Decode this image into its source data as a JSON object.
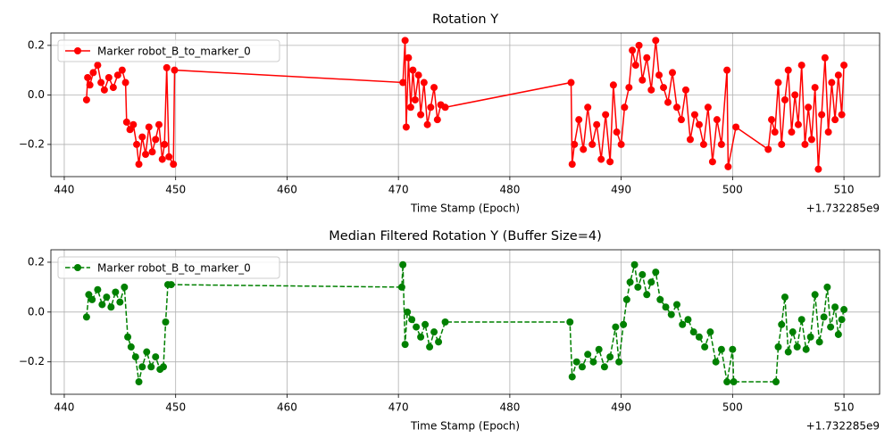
{
  "chart_data": [
    {
      "type": "line",
      "title": "Rotation Y",
      "xlabel": "Time Stamp (Epoch)",
      "x_offset_label": "+1.732285e9",
      "xlim": [
        438.8,
        513.2
      ],
      "ylim": [
        -0.33,
        0.25
      ],
      "xticks": [
        440,
        450,
        460,
        470,
        480,
        490,
        500,
        510
      ],
      "yticks": [
        {
          "value": -0.2,
          "label": "−0.2"
        },
        {
          "value": 0,
          "label": "0.0"
        },
        0.2
      ],
      "grid": true,
      "legend": "upper left",
      "marker": "circle",
      "linestyle": "solid",
      "x": [
        442.0,
        442.1,
        442.3,
        442.6,
        443.0,
        443.3,
        443.6,
        444.0,
        444.4,
        444.8,
        445.2,
        445.5,
        445.6,
        445.9,
        446.2,
        446.5,
        446.7,
        447.0,
        447.3,
        447.6,
        447.9,
        448.2,
        448.5,
        448.8,
        449.0,
        449.2,
        449.4,
        449.8,
        449.9,
        470.4,
        470.6,
        470.7,
        470.9,
        471.1,
        471.3,
        471.5,
        471.8,
        472.0,
        472.3,
        472.6,
        472.9,
        473.2,
        473.5,
        473.8,
        474.2,
        485.5,
        485.6,
        485.8,
        486.2,
        486.6,
        487.0,
        487.4,
        487.8,
        488.2,
        488.6,
        489.0,
        489.3,
        489.6,
        490.0,
        490.3,
        490.7,
        491.0,
        491.3,
        491.6,
        491.9,
        492.3,
        492.7,
        493.1,
        493.4,
        493.8,
        494.2,
        494.6,
        495.0,
        495.4,
        495.8,
        496.2,
        496.6,
        497.0,
        497.4,
        497.8,
        498.2,
        498.6,
        499.0,
        499.5,
        499.6,
        500.3,
        503.2,
        503.5,
        503.8,
        504.1,
        504.4,
        504.7,
        505.0,
        505.3,
        505.6,
        505.9,
        506.2,
        506.5,
        506.8,
        507.1,
        507.4,
        507.7,
        508.0,
        508.3,
        508.6,
        508.9,
        509.2,
        509.5,
        509.8,
        510.0
      ],
      "series": [
        {
          "name": "Marker robot_B_to_marker_0",
          "color": "#ff0000",
          "values": [
            -0.02,
            0.07,
            0.04,
            0.09,
            0.12,
            0.05,
            0.02,
            0.07,
            0.03,
            0.08,
            0.1,
            0.05,
            -0.11,
            -0.14,
            -0.12,
            -0.2,
            -0.28,
            -0.17,
            -0.24,
            -0.13,
            -0.23,
            -0.18,
            -0.12,
            -0.26,
            -0.2,
            0.11,
            -0.25,
            -0.28,
            0.1,
            0.05,
            0.22,
            -0.13,
            0.15,
            -0.05,
            0.1,
            -0.02,
            0.08,
            -0.08,
            0.05,
            -0.12,
            -0.05,
            0.03,
            -0.1,
            -0.04,
            -0.05,
            0.05,
            -0.28,
            -0.2,
            -0.1,
            -0.22,
            -0.05,
            -0.2,
            -0.12,
            -0.26,
            -0.08,
            -0.27,
            0.04,
            -0.15,
            -0.2,
            -0.05,
            0.03,
            0.18,
            0.12,
            0.2,
            0.06,
            0.15,
            0.02,
            0.22,
            0.08,
            0.03,
            -0.03,
            0.09,
            -0.05,
            -0.1,
            0.02,
            -0.18,
            -0.08,
            -0.12,
            -0.2,
            -0.05,
            -0.27,
            -0.1,
            -0.2,
            0.1,
            -0.29,
            -0.13,
            -0.22,
            -0.1,
            -0.15,
            0.05,
            -0.2,
            -0.02,
            0.1,
            -0.15,
            0.0,
            -0.12,
            0.12,
            -0.2,
            -0.05,
            -0.18,
            0.03,
            -0.3,
            -0.08,
            0.15,
            -0.15,
            0.05,
            -0.1,
            0.08,
            -0.08,
            0.12
          ]
        }
      ]
    },
    {
      "type": "line",
      "title": "Median Filtered Rotation Y (Buffer Size=4)",
      "xlabel": "Time Stamp (Epoch)",
      "x_offset_label": "+1.732285e9",
      "xlim": [
        438.8,
        513.2
      ],
      "ylim": [
        -0.33,
        0.25
      ],
      "xticks": [
        440,
        450,
        460,
        470,
        480,
        490,
        500,
        510
      ],
      "yticks": [
        {
          "value": -0.2,
          "label": "−0.2"
        },
        {
          "value": 0,
          "label": "0.0"
        },
        0.2
      ],
      "grid": true,
      "legend": "upper left",
      "marker": "circle",
      "linestyle": "dashed",
      "x": [
        442.0,
        442.2,
        442.5,
        443.0,
        443.4,
        443.8,
        444.2,
        444.6,
        445.0,
        445.4,
        445.7,
        446.0,
        446.4,
        446.7,
        447.0,
        447.4,
        447.8,
        448.2,
        448.6,
        448.9,
        449.1,
        449.3,
        449.6,
        470.3,
        470.4,
        470.6,
        470.8,
        471.2,
        471.6,
        472.0,
        472.4,
        472.8,
        473.2,
        473.6,
        474.2,
        485.4,
        485.6,
        486.0,
        486.5,
        487.0,
        487.5,
        488.0,
        488.5,
        489.0,
        489.5,
        489.8,
        490.2,
        490.5,
        490.8,
        491.2,
        491.5,
        491.9,
        492.3,
        492.7,
        493.1,
        493.5,
        494.0,
        494.5,
        495.0,
        495.5,
        496.0,
        496.5,
        497.0,
        497.5,
        498.0,
        498.5,
        499.0,
        499.5,
        500.0,
        500.1,
        503.9,
        504.1,
        504.4,
        504.7,
        505.0,
        505.4,
        505.8,
        506.2,
        506.6,
        507.0,
        507.4,
        507.8,
        508.2,
        508.5,
        508.8,
        509.2,
        509.5,
        509.8,
        510.0
      ],
      "series": [
        {
          "name": "Marker robot_B_to_marker_0",
          "color": "#008000",
          "values": [
            -0.02,
            0.07,
            0.05,
            0.09,
            0.03,
            0.06,
            0.02,
            0.08,
            0.04,
            0.1,
            -0.1,
            -0.14,
            -0.18,
            -0.28,
            -0.22,
            -0.16,
            -0.22,
            -0.18,
            -0.23,
            -0.22,
            -0.04,
            0.11,
            0.11,
            0.1,
            0.19,
            -0.13,
            0.0,
            -0.03,
            -0.06,
            -0.1,
            -0.05,
            -0.14,
            -0.08,
            -0.12,
            -0.04,
            -0.04,
            -0.26,
            -0.2,
            -0.22,
            -0.17,
            -0.2,
            -0.15,
            -0.22,
            -0.18,
            -0.06,
            -0.2,
            -0.05,
            0.05,
            0.12,
            0.19,
            0.1,
            0.15,
            0.07,
            0.12,
            0.16,
            0.05,
            0.02,
            -0.01,
            0.03,
            -0.05,
            -0.03,
            -0.08,
            -0.1,
            -0.14,
            -0.08,
            -0.2,
            -0.15,
            -0.28,
            -0.15,
            -0.28,
            -0.28,
            -0.14,
            -0.05,
            0.06,
            -0.16,
            -0.08,
            -0.14,
            -0.03,
            -0.15,
            -0.1,
            0.07,
            -0.12,
            -0.02,
            0.1,
            -0.06,
            0.02,
            -0.09,
            -0.03,
            0.01
          ]
        }
      ]
    }
  ]
}
